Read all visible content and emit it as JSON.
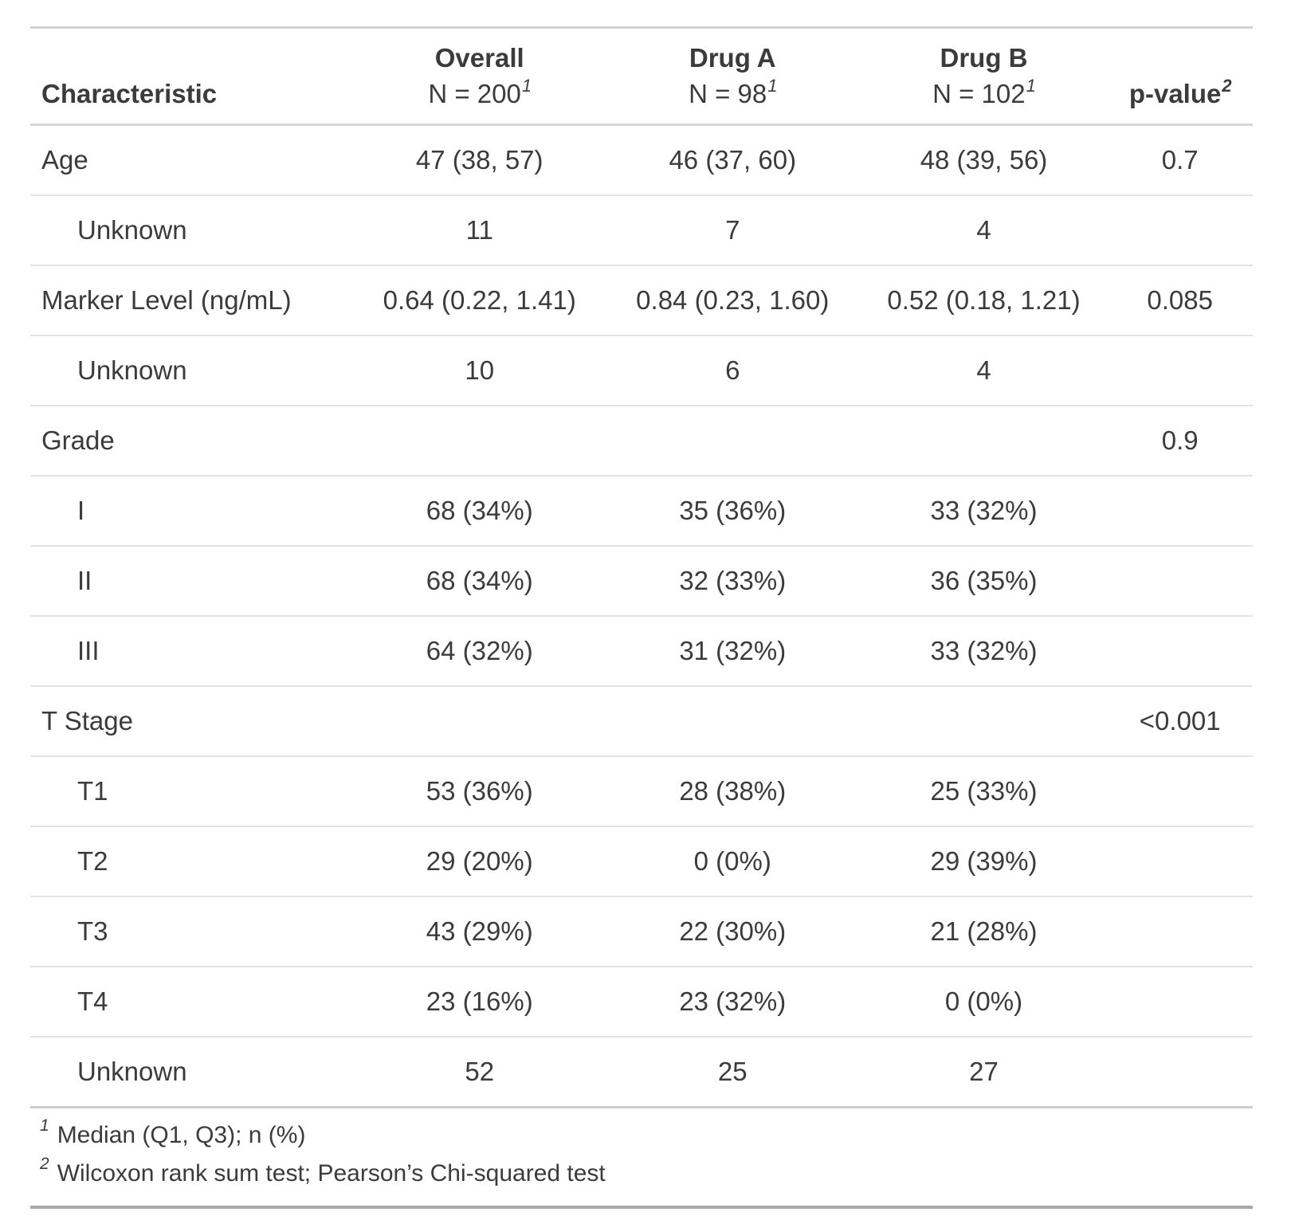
{
  "table": {
    "columns": [
      {
        "label": "Characteristic"
      },
      {
        "label": "Overall",
        "sublabel": "N = 200",
        "footnote_mark": "1"
      },
      {
        "label": "Drug A",
        "sublabel": "N = 98",
        "footnote_mark": "1"
      },
      {
        "label": "Drug B",
        "sublabel": "N = 102",
        "footnote_mark": "1"
      },
      {
        "label": "p-value",
        "footnote_mark": "2"
      }
    ],
    "rows": [
      {
        "label": "Age",
        "indent": false,
        "overall": "47 (38, 57)",
        "drug_a": "46 (37, 60)",
        "drug_b": "48 (39, 56)",
        "p_value": "0.7"
      },
      {
        "label": "Unknown",
        "indent": true,
        "overall": "11",
        "drug_a": "7",
        "drug_b": "4",
        "p_value": ""
      },
      {
        "label": "Marker Level (ng/mL)",
        "indent": false,
        "overall": "0.64 (0.22, 1.41)",
        "drug_a": "0.84 (0.23, 1.60)",
        "drug_b": "0.52 (0.18, 1.21)",
        "p_value": "0.085"
      },
      {
        "label": "Unknown",
        "indent": true,
        "overall": "10",
        "drug_a": "6",
        "drug_b": "4",
        "p_value": ""
      },
      {
        "label": "Grade",
        "indent": false,
        "overall": "",
        "drug_a": "",
        "drug_b": "",
        "p_value": "0.9"
      },
      {
        "label": "I",
        "indent": true,
        "overall": "68 (34%)",
        "drug_a": "35 (36%)",
        "drug_b": "33 (32%)",
        "p_value": ""
      },
      {
        "label": "II",
        "indent": true,
        "overall": "68 (34%)",
        "drug_a": "32 (33%)",
        "drug_b": "36 (35%)",
        "p_value": ""
      },
      {
        "label": "III",
        "indent": true,
        "overall": "64 (32%)",
        "drug_a": "31 (32%)",
        "drug_b": "33 (32%)",
        "p_value": ""
      },
      {
        "label": "T Stage",
        "indent": false,
        "overall": "",
        "drug_a": "",
        "drug_b": "",
        "p_value": "<0.001"
      },
      {
        "label": "T1",
        "indent": true,
        "overall": "53 (36%)",
        "drug_a": "28 (38%)",
        "drug_b": "25 (33%)",
        "p_value": ""
      },
      {
        "label": "T2",
        "indent": true,
        "overall": "29 (20%)",
        "drug_a": "0 (0%)",
        "drug_b": "29 (39%)",
        "p_value": ""
      },
      {
        "label": "T3",
        "indent": true,
        "overall": "43 (29%)",
        "drug_a": "22 (30%)",
        "drug_b": "21 (28%)",
        "p_value": ""
      },
      {
        "label": "T4",
        "indent": true,
        "overall": "23 (16%)",
        "drug_a": "23 (32%)",
        "drug_b": "0 (0%)",
        "p_value": ""
      },
      {
        "label": "Unknown",
        "indent": true,
        "overall": "52",
        "drug_a": "25",
        "drug_b": "27",
        "p_value": ""
      }
    ],
    "footnotes": [
      {
        "mark": "1",
        "text": "Median (Q1, Q3); n (%)"
      },
      {
        "mark": "2",
        "text": "Wilcoxon rank sum test; Pearson’s Chi-squared test"
      }
    ],
    "colors": {
      "text": "#3b3b3b",
      "border_top": "#d2d2d2",
      "border_bottom": "#a8a8a8",
      "row_divider": "#e3e3e3",
      "header_divider": "#d6d6d6"
    }
  }
}
